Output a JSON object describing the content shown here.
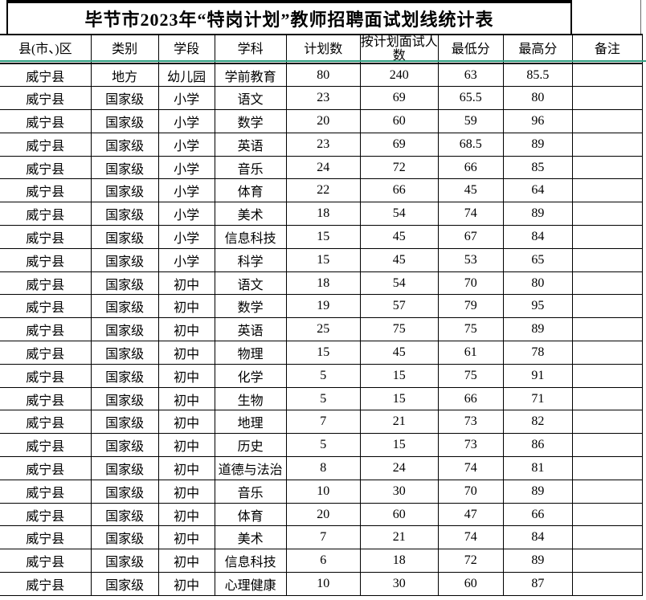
{
  "title": "毕节市2023年“特岗计划”教师招聘面试划线统计表",
  "freeze_line_color": "#2f9e80",
  "chart_data": {
    "type": "table",
    "columns": [
      "县(市、)区",
      "类别",
      "学段",
      "学科",
      "计划数",
      "按计划面试人数",
      "最低分",
      "最高分",
      "备注"
    ],
    "rows": [
      [
        "威宁县",
        "地方",
        "幼儿园",
        "学前教育",
        "80",
        "240",
        "63",
        "85.5",
        ""
      ],
      [
        "威宁县",
        "国家级",
        "小学",
        "语文",
        "23",
        "69",
        "65.5",
        "80",
        ""
      ],
      [
        "威宁县",
        "国家级",
        "小学",
        "数学",
        "20",
        "60",
        "59",
        "96",
        ""
      ],
      [
        "威宁县",
        "国家级",
        "小学",
        "英语",
        "23",
        "69",
        "68.5",
        "89",
        ""
      ],
      [
        "威宁县",
        "国家级",
        "小学",
        "音乐",
        "24",
        "72",
        "66",
        "85",
        ""
      ],
      [
        "威宁县",
        "国家级",
        "小学",
        "体育",
        "22",
        "66",
        "45",
        "64",
        ""
      ],
      [
        "威宁县",
        "国家级",
        "小学",
        "美术",
        "18",
        "54",
        "74",
        "89",
        ""
      ],
      [
        "威宁县",
        "国家级",
        "小学",
        "信息科技",
        "15",
        "45",
        "67",
        "84",
        ""
      ],
      [
        "威宁县",
        "国家级",
        "小学",
        "科学",
        "15",
        "45",
        "53",
        "65",
        ""
      ],
      [
        "威宁县",
        "国家级",
        "初中",
        "语文",
        "18",
        "54",
        "70",
        "80",
        ""
      ],
      [
        "威宁县",
        "国家级",
        "初中",
        "数学",
        "19",
        "57",
        "79",
        "95",
        ""
      ],
      [
        "威宁县",
        "国家级",
        "初中",
        "英语",
        "25",
        "75",
        "75",
        "89",
        ""
      ],
      [
        "威宁县",
        "国家级",
        "初中",
        "物理",
        "15",
        "45",
        "61",
        "78",
        ""
      ],
      [
        "威宁县",
        "国家级",
        "初中",
        "化学",
        "5",
        "15",
        "75",
        "91",
        ""
      ],
      [
        "威宁县",
        "国家级",
        "初中",
        "生物",
        "5",
        "15",
        "66",
        "71",
        ""
      ],
      [
        "威宁县",
        "国家级",
        "初中",
        "地理",
        "7",
        "21",
        "73",
        "82",
        ""
      ],
      [
        "威宁县",
        "国家级",
        "初中",
        "历史",
        "5",
        "15",
        "73",
        "86",
        ""
      ],
      [
        "威宁县",
        "国家级",
        "初中",
        "道德与法治",
        "8",
        "24",
        "74",
        "81",
        ""
      ],
      [
        "威宁县",
        "国家级",
        "初中",
        "音乐",
        "10",
        "30",
        "70",
        "89",
        ""
      ],
      [
        "威宁县",
        "国家级",
        "初中",
        "体育",
        "20",
        "60",
        "47",
        "66",
        ""
      ],
      [
        "威宁县",
        "国家级",
        "初中",
        "美术",
        "7",
        "21",
        "74",
        "84",
        ""
      ],
      [
        "威宁县",
        "国家级",
        "初中",
        "信息科技",
        "6",
        "18",
        "72",
        "89",
        ""
      ],
      [
        "威宁县",
        "国家级",
        "初中",
        "心理健康",
        "10",
        "30",
        "60",
        "87",
        ""
      ]
    ]
  }
}
